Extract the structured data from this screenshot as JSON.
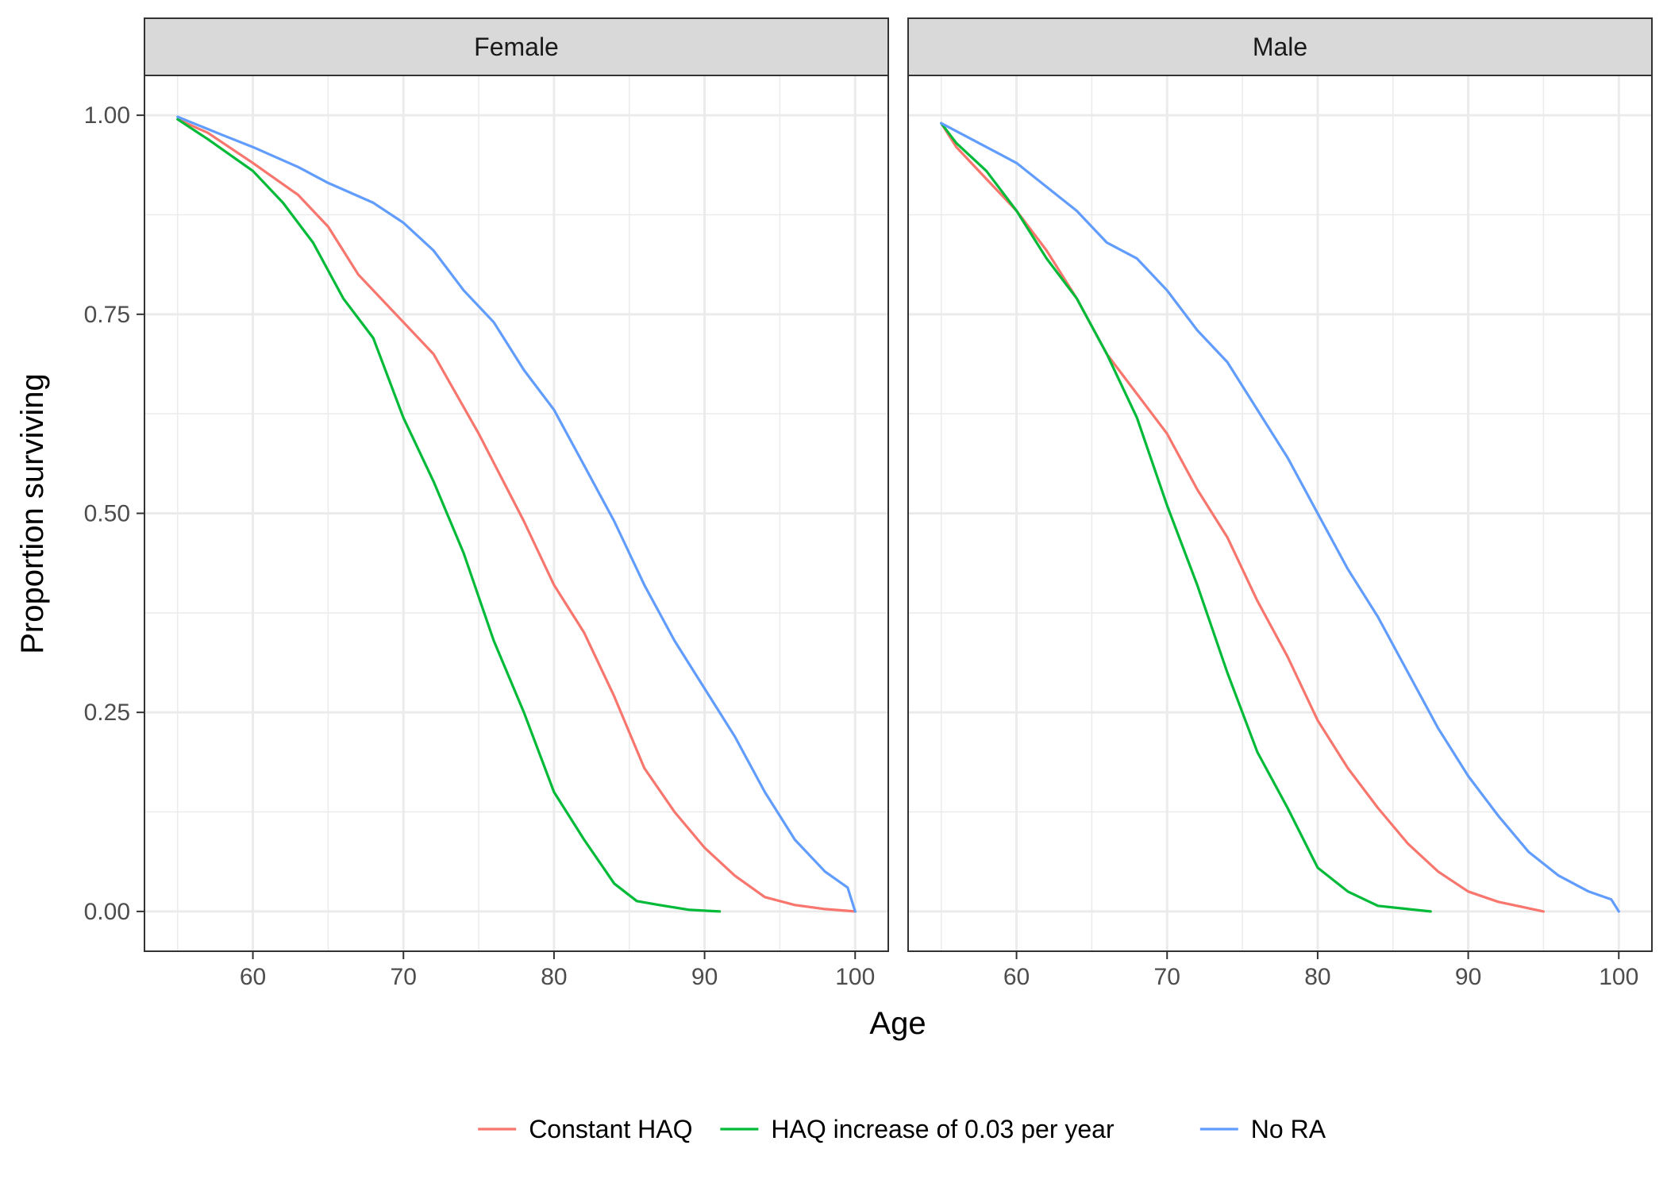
{
  "chart_data": {
    "type": "line",
    "title": "",
    "xlabel": "Age",
    "ylabel": "Proportion surviving",
    "xlim": [
      52.8,
      102.2
    ],
    "ylim": [
      -0.05,
      1.05
    ],
    "x_ticks": [
      60,
      70,
      80,
      90,
      100
    ],
    "x_tick_labels": [
      "60",
      "70",
      "80",
      "90",
      "100"
    ],
    "y_ticks": [
      0,
      0.25,
      0.5,
      0.75,
      1.0
    ],
    "y_tick_labels": [
      "0.00",
      "0.25",
      "0.50",
      "0.75",
      "1.00"
    ],
    "grid": true,
    "legend_position": "bottom",
    "series_styles": [
      {
        "name": "Constant HAQ",
        "color": "#F8766D"
      },
      {
        "name": "HAQ increase of 0.03 per year",
        "color": "#00BA38"
      },
      {
        "name": "No RA",
        "color": "#619CFF"
      }
    ],
    "panels": [
      {
        "label": "Female",
        "series": [
          {
            "name": "Constant HAQ",
            "x": [
              55,
              57,
              60,
              63,
              65,
              67,
              70,
              72,
              75,
              78,
              80,
              82,
              84,
              86,
              88,
              90,
              92,
              94,
              96,
              98,
              100
            ],
            "y": [
              0.995,
              0.978,
              0.94,
              0.9,
              0.86,
              0.8,
              0.74,
              0.7,
              0.6,
              0.49,
              0.41,
              0.35,
              0.27,
              0.18,
              0.125,
              0.08,
              0.045,
              0.018,
              0.008,
              0.003,
              0.0
            ]
          },
          {
            "name": "HAQ increase of 0.03 per year",
            "x": [
              55,
              57,
              60,
              62,
              64,
              66,
              68,
              70,
              72,
              74,
              76,
              78,
              80,
              82,
              84,
              85.5,
              87,
              89,
              91
            ],
            "y": [
              0.995,
              0.97,
              0.93,
              0.89,
              0.84,
              0.77,
              0.72,
              0.62,
              0.54,
              0.45,
              0.34,
              0.25,
              0.15,
              0.09,
              0.035,
              0.013,
              0.008,
              0.002,
              0.0
            ]
          },
          {
            "name": "No RA",
            "x": [
              55,
              58,
              60,
              63,
              65,
              68,
              70,
              72,
              74,
              76,
              78,
              80,
              82,
              84,
              86,
              88,
              90,
              92,
              94,
              96,
              98,
              99.5,
              100
            ],
            "y": [
              0.998,
              0.975,
              0.96,
              0.935,
              0.915,
              0.89,
              0.865,
              0.83,
              0.78,
              0.74,
              0.68,
              0.63,
              0.56,
              0.49,
              0.41,
              0.34,
              0.28,
              0.22,
              0.15,
              0.09,
              0.05,
              0.03,
              0.0
            ]
          }
        ]
      },
      {
        "label": "Male",
        "series": [
          {
            "name": "Constant HAQ",
            "x": [
              55,
              56,
              58,
              60,
              62,
              64,
              66,
              68,
              70,
              72,
              74,
              76,
              78,
              80,
              82,
              84,
              86,
              88,
              90,
              92,
              95
            ],
            "y": [
              0.99,
              0.96,
              0.92,
              0.88,
              0.83,
              0.77,
              0.7,
              0.65,
              0.6,
              0.53,
              0.47,
              0.39,
              0.32,
              0.24,
              0.18,
              0.13,
              0.085,
              0.05,
              0.025,
              0.012,
              0.0
            ]
          },
          {
            "name": "HAQ increase of 0.03 per year",
            "x": [
              55,
              56,
              58,
              60,
              62,
              64,
              66,
              68,
              70,
              72,
              74,
              76,
              78,
              80,
              82,
              84,
              86,
              87.5
            ],
            "y": [
              0.99,
              0.965,
              0.93,
              0.88,
              0.82,
              0.77,
              0.7,
              0.62,
              0.51,
              0.41,
              0.3,
              0.2,
              0.13,
              0.055,
              0.025,
              0.007,
              0.003,
              0.0
            ]
          },
          {
            "name": "No RA",
            "x": [
              55,
              57,
              60,
              62,
              64,
              66,
              68,
              70,
              72,
              74,
              76,
              78,
              80,
              82,
              84,
              86,
              88,
              90,
              92,
              94,
              96,
              98,
              99.5,
              100
            ],
            "y": [
              0.99,
              0.97,
              0.94,
              0.91,
              0.88,
              0.84,
              0.82,
              0.78,
              0.73,
              0.69,
              0.63,
              0.57,
              0.5,
              0.43,
              0.37,
              0.3,
              0.23,
              0.17,
              0.12,
              0.075,
              0.045,
              0.025,
              0.015,
              0.0
            ]
          }
        ]
      }
    ]
  }
}
